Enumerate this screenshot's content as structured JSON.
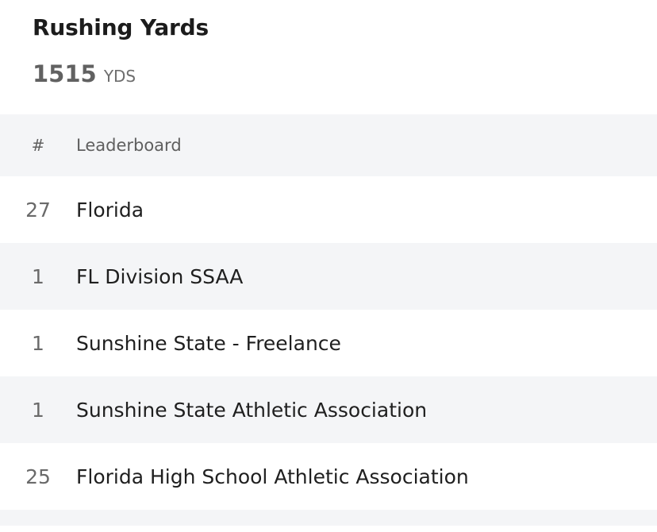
{
  "stat": {
    "title": "Rushing Yards",
    "value": "1515",
    "unit": "YDS"
  },
  "table": {
    "headers": {
      "rank": "#",
      "name": "Leaderboard"
    },
    "rows": [
      {
        "rank": "27",
        "name": "Florida"
      },
      {
        "rank": "1",
        "name": "FL Division SSAA"
      },
      {
        "rank": "1",
        "name": "Sunshine State - Freelance"
      },
      {
        "rank": "1",
        "name": "Sunshine State Athletic Association"
      },
      {
        "rank": "25",
        "name": "Florida High School Athletic Association"
      }
    ]
  }
}
